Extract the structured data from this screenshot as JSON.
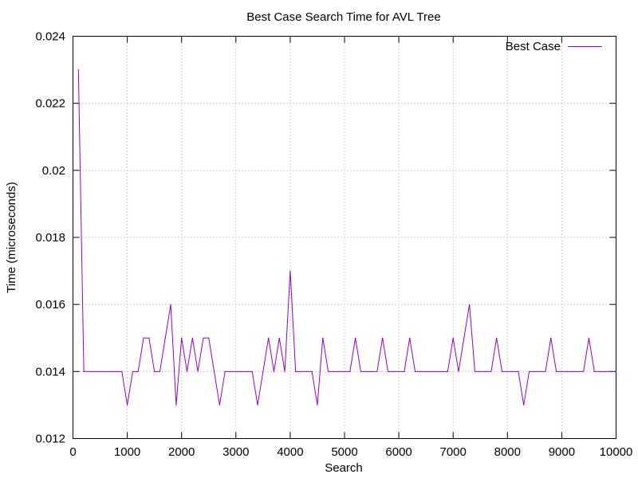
{
  "chart_data": {
    "type": "line",
    "title": "Best Case Search Time for AVL Tree",
    "xlabel": "Search",
    "ylabel": "Time (microseconds)",
    "xlim": [
      0,
      10000
    ],
    "ylim": [
      0.012,
      0.024
    ],
    "xticks": [
      0,
      1000,
      2000,
      3000,
      4000,
      5000,
      6000,
      7000,
      8000,
      9000,
      10000
    ],
    "xtick_labels": [
      "0",
      "1000",
      "2000",
      "3000",
      "4000",
      "5000",
      "6000",
      "7000",
      "8000",
      "9000",
      "10000"
    ],
    "yticks": [
      0.012,
      0.014,
      0.016,
      0.018,
      0.02,
      0.022,
      0.024
    ],
    "ytick_labels": [
      "0.012",
      "0.014",
      "0.016",
      "0.018",
      "0.02",
      "0.022",
      "0.024"
    ],
    "grid": true,
    "legend_position": "top-right",
    "series": [
      {
        "name": "Best Case",
        "color": "#9400d3",
        "x": [
          100,
          200,
          300,
          400,
          500,
          600,
          700,
          800,
          900,
          1000,
          1100,
          1200,
          1300,
          1400,
          1500,
          1600,
          1700,
          1800,
          1900,
          2000,
          2100,
          2200,
          2300,
          2400,
          2500,
          2600,
          2700,
          2800,
          2900,
          3000,
          3100,
          3200,
          3300,
          3400,
          3500,
          3600,
          3700,
          3800,
          3900,
          4000,
          4100,
          4200,
          4300,
          4400,
          4500,
          4600,
          4700,
          4800,
          4900,
          5000,
          5100,
          5200,
          5300,
          5400,
          5500,
          5600,
          5700,
          5800,
          5900,
          6000,
          6100,
          6200,
          6300,
          6400,
          6500,
          6600,
          6700,
          6800,
          6900,
          7000,
          7100,
          7200,
          7300,
          7400,
          7500,
          7600,
          7700,
          7800,
          7900,
          8000,
          8100,
          8200,
          8300,
          8400,
          8500,
          8600,
          8700,
          8800,
          8900,
          9000,
          9100,
          9200,
          9300,
          9400,
          9500,
          9600,
          9700,
          9800,
          9900,
          10000
        ],
        "values": [
          0.023,
          0.014,
          0.014,
          0.014,
          0.014,
          0.014,
          0.014,
          0.014,
          0.014,
          0.013,
          0.014,
          0.014,
          0.015,
          0.015,
          0.014,
          0.014,
          0.015,
          0.016,
          0.013,
          0.015,
          0.014,
          0.015,
          0.014,
          0.015,
          0.015,
          0.014,
          0.013,
          0.014,
          0.014,
          0.014,
          0.014,
          0.014,
          0.014,
          0.013,
          0.014,
          0.015,
          0.014,
          0.015,
          0.014,
          0.017,
          0.014,
          0.014,
          0.014,
          0.014,
          0.013,
          0.015,
          0.014,
          0.014,
          0.014,
          0.014,
          0.014,
          0.015,
          0.014,
          0.014,
          0.014,
          0.014,
          0.015,
          0.014,
          0.014,
          0.014,
          0.014,
          0.015,
          0.014,
          0.014,
          0.014,
          0.014,
          0.014,
          0.014,
          0.014,
          0.015,
          0.014,
          0.015,
          0.016,
          0.014,
          0.014,
          0.014,
          0.014,
          0.015,
          0.014,
          0.014,
          0.014,
          0.014,
          0.013,
          0.014,
          0.014,
          0.014,
          0.014,
          0.015,
          0.014,
          0.014,
          0.014,
          0.014,
          0.014,
          0.014,
          0.015,
          0.014,
          0.014,
          0.014,
          0.014,
          0.014
        ]
      }
    ]
  }
}
